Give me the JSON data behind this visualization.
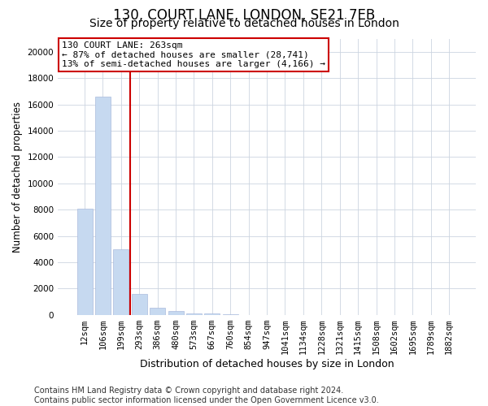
{
  "title": "130, COURT LANE, LONDON, SE21 7EB",
  "subtitle": "Size of property relative to detached houses in London",
  "xlabel": "Distribution of detached houses by size in London",
  "ylabel": "Number of detached properties",
  "bar_color": "#c6d9f0",
  "bar_edge_color": "#aabbdd",
  "vline_color": "#cc0000",
  "annotation_text": "130 COURT LANE: 263sqm\n← 87% of detached houses are smaller (28,741)\n13% of semi-detached houses are larger (4,166) →",
  "annotation_box_color": "#ffffff",
  "annotation_border_color": "#cc0000",
  "categories": [
    "12sqm",
    "106sqm",
    "199sqm",
    "293sqm",
    "386sqm",
    "480sqm",
    "573sqm",
    "667sqm",
    "760sqm",
    "854sqm",
    "947sqm",
    "1041sqm",
    "1134sqm",
    "1228sqm",
    "1321sqm",
    "1415sqm",
    "1508sqm",
    "1602sqm",
    "1695sqm",
    "1789sqm",
    "1882sqm"
  ],
  "values": [
    8050,
    16600,
    5000,
    1600,
    560,
    290,
    140,
    85,
    55,
    0,
    0,
    0,
    0,
    0,
    0,
    0,
    0,
    0,
    0,
    0,
    0
  ],
  "ylim": [
    0,
    21000
  ],
  "yticks": [
    0,
    2000,
    4000,
    6000,
    8000,
    10000,
    12000,
    14000,
    16000,
    18000,
    20000
  ],
  "footnote": "Contains HM Land Registry data © Crown copyright and database right 2024.\nContains public sector information licensed under the Open Government Licence v3.0.",
  "background_color": "#ffffff",
  "grid_color": "#ccd4e0",
  "title_fontsize": 12,
  "subtitle_fontsize": 10,
  "xlabel_fontsize": 9,
  "ylabel_fontsize": 8.5,
  "tick_fontsize": 7.5,
  "annot_fontsize": 8,
  "footnote_fontsize": 7
}
